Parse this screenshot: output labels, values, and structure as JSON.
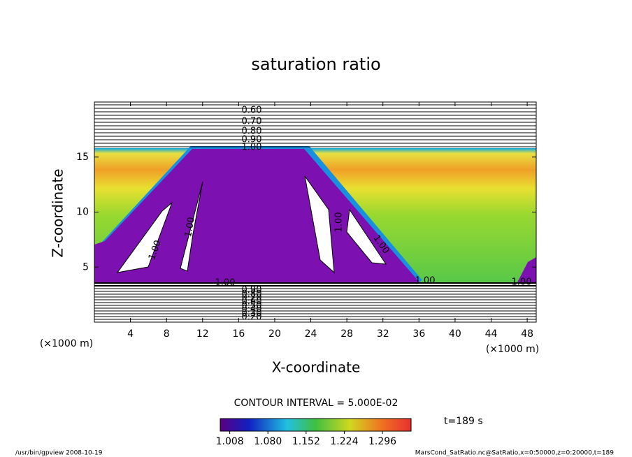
{
  "chart_data": {
    "type": "contour",
    "title": "saturation ratio",
    "xlabel": "X-coordinate",
    "ylabel": "Z-coordinate",
    "x_unit": "(×1000 m)",
    "xlim": [
      0,
      49
    ],
    "ylim": [
      0,
      20
    ],
    "xticks": [
      4,
      8,
      12,
      16,
      20,
      24,
      28,
      32,
      36,
      40,
      44,
      48
    ],
    "yticks": [
      5,
      10,
      15
    ],
    "upper_contour_labels": [
      {
        "value": 0.6,
        "label": "0.60"
      },
      {
        "value": 0.7,
        "label": "0.70"
      },
      {
        "value": 0.8,
        "label": "0.80"
      },
      {
        "value": 0.9,
        "label": "0.90"
      },
      {
        "value": 1.0,
        "label": "1.00"
      }
    ],
    "lower_contour_labels": [
      {
        "value": 1.0,
        "label": "1.00"
      },
      {
        "value": 0.9,
        "label": "0.90"
      },
      {
        "value": 0.8,
        "label": "0.80"
      },
      {
        "value": 0.7,
        "label": "0.70"
      },
      {
        "value": 0.6,
        "label": "0.60"
      },
      {
        "value": 0.5,
        "label": "0.50"
      },
      {
        "value": 0.4,
        "label": "0.40"
      },
      {
        "value": 0.3,
        "label": "0.30"
      },
      {
        "value": 0.2,
        "label": "0.20"
      }
    ],
    "field_labels": [
      {
        "value": 1.0,
        "label": "1.00"
      },
      {
        "value": 1.0,
        "label": "1.00"
      },
      {
        "value": 1.0,
        "label": "1.00"
      },
      {
        "value": 1.0,
        "label": "1.00"
      },
      {
        "value": 1.0,
        "label": "1.00"
      },
      {
        "value": 1.0,
        "label": "1.00"
      }
    ],
    "contour_interval": "CONTOUR INTERVAL = 5.000E-02",
    "time": "t=189 s",
    "colorbar": {
      "clim": [
        0.99,
        1.35
      ],
      "ticks": [
        1.008,
        {
          "value": 1.08,
          "label": "1.080"
        },
        1.152,
        1.224,
        1.296
      ]
    },
    "footer_left": "/usr/bin/gpview  2008-10-19",
    "footer_right": "MarsCond_SatRatio.nc@SatRatio,x=0:50000,z=0:20000,t=189"
  }
}
